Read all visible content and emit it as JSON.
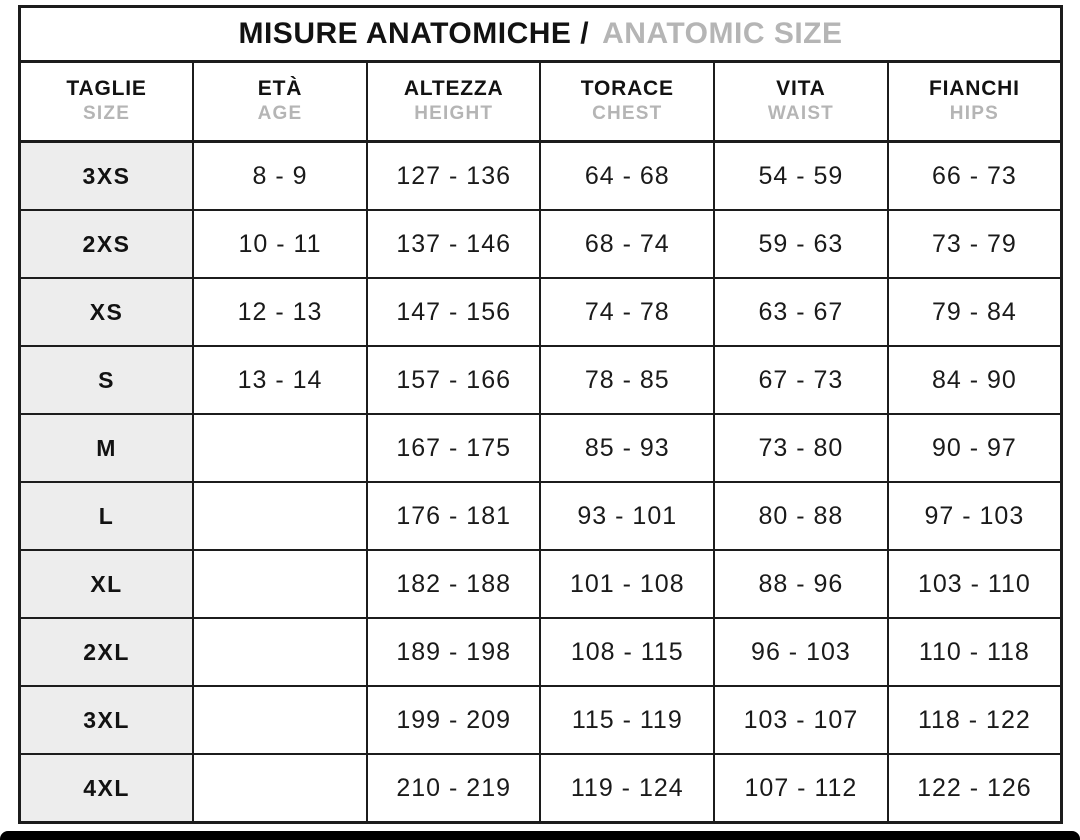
{
  "title": {
    "primary": "MISURE ANATOMICHE /",
    "secondary": "ANATOMIC SIZE"
  },
  "chart_data": {
    "type": "table",
    "title": "MISURE ANATOMICHE / ANATOMIC SIZE",
    "columns": [
      {
        "key": "size",
        "label_it": "TAGLIE",
        "label_en": "SIZE"
      },
      {
        "key": "age",
        "label_it": "ETÀ",
        "label_en": "AGE"
      },
      {
        "key": "height",
        "label_it": "ALTEZZA",
        "label_en": "HEIGHT"
      },
      {
        "key": "chest",
        "label_it": "TORACE",
        "label_en": "CHEST"
      },
      {
        "key": "waist",
        "label_it": "VITA",
        "label_en": "WAIST"
      },
      {
        "key": "hips",
        "label_it": "FIANCHI",
        "label_en": "HIPS"
      }
    ],
    "rows": [
      {
        "size": "3XS",
        "age": "8 - 9",
        "height": "127 - 136",
        "chest": "64 - 68",
        "waist": "54 - 59",
        "hips": "66 - 73"
      },
      {
        "size": "2XS",
        "age": "10 - 11",
        "height": "137 - 146",
        "chest": "68 - 74",
        "waist": "59 - 63",
        "hips": "73 - 79"
      },
      {
        "size": "XS",
        "age": "12 - 13",
        "height": "147 - 156",
        "chest": "74 - 78",
        "waist": "63 - 67",
        "hips": "79 - 84"
      },
      {
        "size": "S",
        "age": "13 - 14",
        "height": "157 - 166",
        "chest": "78 - 85",
        "waist": "67 - 73",
        "hips": "84 - 90"
      },
      {
        "size": "M",
        "age": "",
        "height": "167 - 175",
        "chest": "85 - 93",
        "waist": "73 - 80",
        "hips": "90 - 97"
      },
      {
        "size": "L",
        "age": "",
        "height": "176 - 181",
        "chest": "93 - 101",
        "waist": "80 - 88",
        "hips": "97 - 103"
      },
      {
        "size": "XL",
        "age": "",
        "height": "182 - 188",
        "chest": "101 - 108",
        "waist": "88 - 96",
        "hips": "103 - 110"
      },
      {
        "size": "2XL",
        "age": "",
        "height": "189 - 198",
        "chest": "108 - 115",
        "waist": "96 - 103",
        "hips": "110 - 118"
      },
      {
        "size": "3XL",
        "age": "",
        "height": "199 - 209",
        "chest": "115 - 119",
        "waist": "103 - 107",
        "hips": "118 - 122"
      },
      {
        "size": "4XL",
        "age": "",
        "height": "210 - 219",
        "chest": "119 - 124",
        "waist": "107 - 112",
        "hips": "122 - 126"
      }
    ]
  },
  "colors": {
    "text_primary": "#121212",
    "text_secondary": "#b5b5b5",
    "grid_line": "#1c1c1c",
    "size_cell_bg": "#ededed",
    "page_bg": "#ffffff",
    "bottom_bar": "#000000"
  }
}
